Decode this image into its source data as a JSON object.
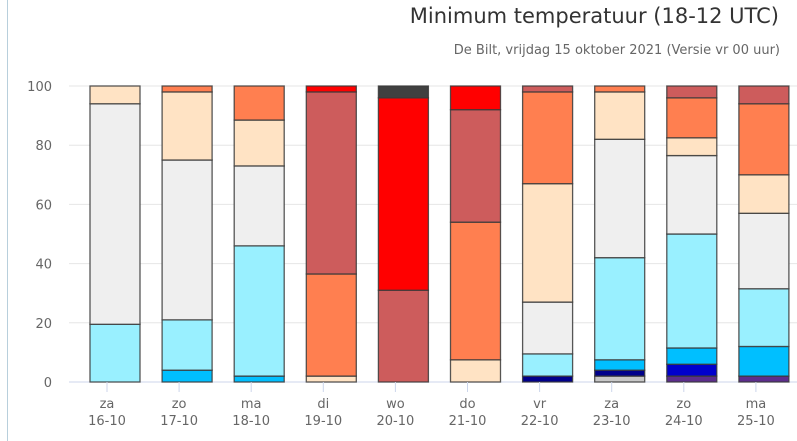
{
  "chart_data": {
    "type": "bar",
    "stacked": true,
    "title": "Minimum temperatuur (18-12 UTC)",
    "subtitle": "De Bilt, vrijdag 15 oktober 2021 (Versie vr 00 uur)",
    "xlabel": "",
    "ylabel": "",
    "ylim": [
      0,
      100
    ],
    "yticks": [
      "0",
      "20",
      "40",
      "60",
      "80",
      "100"
    ],
    "grid": true,
    "legend": "none",
    "categories": [
      {
        "day": "za",
        "date": "16-10"
      },
      {
        "day": "zo",
        "date": "17-10"
      },
      {
        "day": "ma",
        "date": "18-10"
      },
      {
        "day": "di",
        "date": "19-10"
      },
      {
        "day": "wo",
        "date": "20-10"
      },
      {
        "day": "do",
        "date": "21-10"
      },
      {
        "day": "vr",
        "date": "22-10"
      },
      {
        "day": "za",
        "date": "23-10"
      },
      {
        "day": "zo",
        "date": "24-10"
      },
      {
        "day": "ma",
        "date": "25-10"
      }
    ],
    "series": [
      {
        "name": "class-1",
        "color": "#5c2d8c",
        "values": [
          0,
          0,
          0,
          0,
          0,
          0,
          0,
          0,
          2,
          2
        ]
      },
      {
        "name": "class-2",
        "color": "#c8c8c8",
        "values": [
          0,
          0,
          0,
          0,
          0,
          0,
          0,
          2,
          0,
          0
        ]
      },
      {
        "name": "class-3",
        "color": "#00008b",
        "values": [
          0,
          0,
          0,
          0,
          0,
          0,
          2,
          2,
          0,
          0
        ]
      },
      {
        "name": "class-4",
        "color": "#0000cd",
        "values": [
          0,
          0,
          0,
          0,
          0,
          0,
          0,
          0,
          4,
          0
        ]
      },
      {
        "name": "class-5",
        "color": "#00bfff",
        "values": [
          0,
          4,
          2,
          0,
          0,
          0,
          0,
          3.5,
          5.5,
          10
        ]
      },
      {
        "name": "class-6",
        "color": "#99f0ff",
        "values": [
          19.5,
          17,
          44,
          0,
          0,
          0,
          7.5,
          34.5,
          38.5,
          19.5
        ]
      },
      {
        "name": "class-7",
        "color": "#efefef",
        "values": [
          74.5,
          54,
          27,
          0,
          0,
          0,
          17.5,
          40,
          26.5,
          25.5
        ]
      },
      {
        "name": "class-8",
        "color": "#ffe3c4",
        "values": [
          6,
          23,
          15.5,
          2,
          0,
          7.5,
          40,
          16,
          6,
          13
        ]
      },
      {
        "name": "class-9",
        "color": "#ff7f50",
        "values": [
          0,
          2,
          11.5,
          34.5,
          0,
          46.5,
          31,
          2,
          13.5,
          24
        ]
      },
      {
        "name": "class-10",
        "color": "#cd5c5c",
        "values": [
          0,
          0,
          0,
          61.5,
          31,
          38,
          2,
          0,
          4,
          6
        ]
      },
      {
        "name": "class-11",
        "color": "#ff0000",
        "values": [
          0,
          0,
          0,
          2,
          65,
          8,
          0,
          0,
          0,
          0
        ]
      },
      {
        "name": "class-12",
        "color": "#404040",
        "values": [
          0,
          0,
          0,
          0,
          4,
          0,
          0,
          0,
          0,
          0
        ]
      }
    ]
  }
}
